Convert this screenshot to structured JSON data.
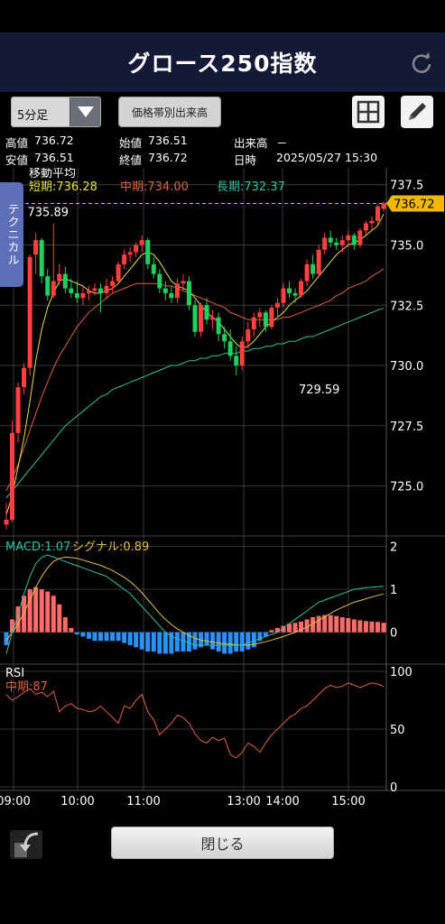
{
  "header": {
    "title": "グロース250指数"
  },
  "toolbar": {
    "interval_value": "5分足",
    "price_volume_label": "価格帯別出来高"
  },
  "quote": {
    "high_label": "高値",
    "high": "736.72",
    "open_label": "始値",
    "open": "736.51",
    "volume_label": "出来高",
    "volume": "－",
    "low_label": "安値",
    "low": "736.51",
    "close_label": "終値",
    "close": "736.72",
    "time_label": "日時",
    "time": "2025/05/27 15:30"
  },
  "side_tab": {
    "label": "テクニカル"
  },
  "footer": {
    "close_label": "閉じる"
  },
  "colors": {
    "up": "#ff4040",
    "down": "#1fd060",
    "sma_short": "#e0e040",
    "sma_mid": "#e06040",
    "sma_long": "#30c0a0",
    "macd_pos": "#ff6b6b",
    "macd_neg": "#2e90ff",
    "price_tag": "#f0b800"
  },
  "chart_data": [
    {
      "type": "candlestick",
      "title": "移動平均",
      "legend": [
        {
          "name": "短期",
          "value": "736.28",
          "color": "#e0e040"
        },
        {
          "name": "中期",
          "value": "734.00",
          "color": "#e06040"
        },
        {
          "name": "長期",
          "value": "732.37",
          "color": "#30c0a0"
        }
      ],
      "y_ticks": [
        "737.5",
        "735.0",
        "732.5",
        "730.0",
        "727.5",
        "725.0"
      ],
      "ylim": [
        723.0,
        738.2
      ],
      "x_ticks": [
        "09:00",
        "10:00",
        "11:00",
        "13:00",
        "14:00",
        "15:00"
      ],
      "last_price": 736.72,
      "last_price_label": "736.72",
      "annotations": [
        {
          "text": "735.89",
          "t": 8,
          "value": 735.89
        },
        {
          "text": "729.59",
          "t": 54,
          "value": 729.59
        }
      ],
      "candles": [
        [
          723.4,
          724.3,
          723.2,
          723.6
        ],
        [
          723.6,
          727.7,
          723.5,
          727.2
        ],
        [
          727.2,
          729.3,
          726.8,
          729.1
        ],
        [
          729.1,
          730.1,
          728.8,
          729.9
        ],
        [
          729.9,
          734.6,
          729.6,
          734.5
        ],
        [
          734.6,
          735.5,
          733.8,
          735.2
        ],
        [
          735.2,
          735.3,
          733.4,
          733.7
        ],
        [
          733.7,
          734.0,
          732.7,
          732.9
        ],
        [
          732.9,
          735.9,
          732.8,
          733.5
        ],
        [
          733.5,
          734.2,
          733.3,
          733.8
        ],
        [
          733.8,
          734.1,
          733.0,
          733.2
        ],
        [
          733.2,
          733.6,
          732.8,
          733.0
        ],
        [
          733.0,
          733.5,
          732.6,
          732.8
        ],
        [
          732.8,
          733.3,
          732.5,
          733.0
        ],
        [
          733.0,
          733.3,
          732.7,
          733.1
        ],
        [
          733.1,
          733.4,
          732.9,
          733.2
        ],
        [
          733.2,
          733.4,
          732.2,
          733.0
        ],
        [
          733.0,
          733.6,
          732.8,
          733.3
        ],
        [
          733.3,
          733.7,
          733.0,
          733.5
        ],
        [
          733.5,
          734.3,
          733.4,
          734.2
        ],
        [
          734.2,
          734.8,
          734.0,
          734.6
        ],
        [
          734.6,
          734.9,
          734.3,
          734.7
        ],
        [
          734.7,
          735.1,
          734.5,
          735.0
        ],
        [
          735.0,
          735.4,
          734.7,
          735.2
        ],
        [
          735.2,
          735.3,
          734.0,
          734.2
        ],
        [
          734.2,
          734.5,
          733.6,
          733.8
        ],
        [
          733.8,
          734.0,
          733.0,
          733.2
        ],
        [
          733.2,
          733.5,
          732.7,
          733.0
        ],
        [
          733.0,
          733.3,
          732.6,
          732.8
        ],
        [
          732.8,
          733.6,
          732.6,
          733.4
        ],
        [
          733.4,
          733.8,
          733.1,
          733.5
        ],
        [
          733.5,
          733.7,
          732.3,
          732.5
        ],
        [
          732.5,
          732.7,
          731.2,
          731.4
        ],
        [
          731.4,
          732.6,
          731.2,
          732.5
        ],
        [
          732.5,
          732.8,
          731.7,
          731.9
        ],
        [
          731.9,
          732.3,
          731.5,
          732.0
        ],
        [
          732.0,
          732.2,
          731.0,
          731.3
        ],
        [
          731.3,
          731.6,
          730.7,
          731.0
        ],
        [
          731.0,
          731.5,
          730.2,
          730.4
        ],
        [
          730.4,
          730.8,
          729.6,
          730.0
        ],
        [
          730.0,
          731.2,
          729.8,
          731.0
        ],
        [
          731.0,
          731.8,
          730.7,
          731.5
        ],
        [
          731.5,
          732.2,
          731.2,
          732.0
        ],
        [
          732.0,
          732.4,
          731.6,
          732.2
        ],
        [
          732.2,
          732.3,
          731.4,
          731.6
        ],
        [
          731.6,
          732.5,
          731.5,
          732.4
        ],
        [
          732.4,
          732.8,
          732.0,
          732.6
        ],
        [
          732.6,
          733.4,
          732.4,
          733.2
        ],
        [
          733.2,
          733.5,
          732.8,
          733.0
        ],
        [
          733.0,
          733.2,
          732.6,
          732.9
        ],
        [
          732.9,
          733.6,
          732.8,
          733.5
        ],
        [
          733.5,
          734.4,
          733.3,
          734.2
        ],
        [
          734.2,
          734.6,
          733.6,
          733.8
        ],
        [
          733.8,
          735.0,
          733.7,
          734.8
        ],
        [
          734.8,
          735.5,
          734.6,
          735.3
        ],
        [
          735.3,
          735.6,
          734.9,
          735.1
        ],
        [
          735.1,
          735.3,
          734.8,
          735.0
        ],
        [
          735.0,
          735.4,
          734.7,
          735.2
        ],
        [
          735.2,
          735.6,
          734.9,
          735.4
        ],
        [
          735.4,
          735.5,
          734.8,
          735.0
        ],
        [
          735.0,
          735.7,
          734.9,
          735.6
        ],
        [
          735.6,
          736.0,
          735.4,
          735.9
        ],
        [
          735.9,
          736.2,
          735.6,
          736.0
        ],
        [
          736.0,
          736.7,
          735.8,
          736.6
        ],
        [
          736.5,
          736.8,
          736.4,
          736.72
        ]
      ],
      "sma_short": [
        723.8,
        724.6,
        725.8,
        727.0,
        728.5,
        730.2,
        731.5,
        732.4,
        733.0,
        733.5,
        733.6,
        733.5,
        733.4,
        733.3,
        733.1,
        733.0,
        733.0,
        733.1,
        733.2,
        733.4,
        733.7,
        734.0,
        734.3,
        734.6,
        734.7,
        734.6,
        734.3,
        733.9,
        733.5,
        733.3,
        733.2,
        733.1,
        732.8,
        732.5,
        732.2,
        732.0,
        731.8,
        731.5,
        731.2,
        730.9,
        730.7,
        730.8,
        731.0,
        731.3,
        731.6,
        731.8,
        732.0,
        732.2,
        732.5,
        732.7,
        732.9,
        733.1,
        733.4,
        733.7,
        734.0,
        734.3,
        734.6,
        734.8,
        735.0,
        735.1,
        735.2,
        735.4,
        735.6,
        735.8,
        736.28
      ],
      "sma_mid": [
        724.8,
        725.3,
        725.9,
        726.6,
        727.3,
        728.0,
        728.7,
        729.3,
        729.9,
        730.4,
        730.8,
        731.2,
        731.6,
        731.9,
        732.2,
        732.4,
        732.6,
        732.8,
        733.0,
        733.1,
        733.2,
        733.3,
        733.4,
        733.4,
        733.4,
        733.4,
        733.4,
        733.3,
        733.3,
        733.2,
        733.1,
        733.0,
        732.9,
        732.8,
        732.7,
        732.6,
        732.5,
        732.4,
        732.2,
        732.1,
        732.0,
        731.9,
        731.9,
        731.9,
        731.9,
        731.9,
        731.9,
        732.0,
        732.0,
        732.1,
        732.2,
        732.3,
        732.4,
        732.5,
        732.6,
        732.7,
        732.9,
        733.0,
        733.2,
        733.3,
        733.4,
        733.5,
        733.7,
        733.85,
        734.0
      ],
      "sma_long": [
        724.5,
        724.8,
        725.1,
        725.4,
        725.7,
        726.0,
        726.3,
        726.6,
        726.9,
        727.2,
        727.5,
        727.7,
        727.9,
        728.1,
        728.3,
        728.5,
        728.7,
        728.8,
        729.0,
        729.1,
        729.2,
        729.3,
        729.4,
        729.5,
        729.6,
        729.7,
        729.8,
        729.9,
        730.0,
        730.0,
        730.1,
        730.2,
        730.2,
        730.3,
        730.3,
        730.4,
        730.4,
        730.5,
        730.5,
        730.5,
        730.6,
        730.6,
        730.7,
        730.7,
        730.8,
        730.8,
        730.9,
        730.9,
        731.0,
        731.0,
        731.1,
        731.2,
        731.2,
        731.3,
        731.4,
        731.5,
        731.6,
        731.7,
        731.8,
        731.9,
        732.0,
        732.1,
        732.2,
        732.3,
        732.37
      ]
    },
    {
      "type": "bar",
      "title": "MACD",
      "legend": [
        {
          "name": "MACD",
          "value": "1.07",
          "color": "#30c0a0"
        },
        {
          "name": "シグナル",
          "value": "0.89",
          "color": "#e0c040"
        }
      ],
      "y_ticks": [
        "2",
        "1",
        "0"
      ],
      "ylim": [
        -0.7,
        2.2
      ],
      "histogram": [
        -0.3,
        0.3,
        0.6,
        0.85,
        1.0,
        1.05,
        1.0,
        0.95,
        0.85,
        0.65,
        0.35,
        0.1,
        -0.05,
        -0.1,
        -0.15,
        -0.2,
        -0.2,
        -0.2,
        -0.2,
        -0.2,
        -0.25,
        -0.3,
        -0.35,
        -0.4,
        -0.45,
        -0.45,
        -0.5,
        -0.5,
        -0.5,
        -0.45,
        -0.45,
        -0.45,
        -0.4,
        -0.35,
        -0.3,
        -0.4,
        -0.45,
        -0.5,
        -0.5,
        -0.45,
        -0.45,
        -0.4,
        -0.35,
        -0.2,
        -0.1,
        0.05,
        0.1,
        0.15,
        0.2,
        0.22,
        0.25,
        0.3,
        0.35,
        0.38,
        0.4,
        0.4,
        0.38,
        0.35,
        0.33,
        0.3,
        0.28,
        0.26,
        0.25,
        0.24,
        0.22
      ],
      "macd": [
        -0.5,
        0.0,
        0.4,
        0.9,
        1.3,
        1.6,
        1.75,
        1.8,
        1.75,
        1.7,
        1.65,
        1.6,
        1.55,
        1.5,
        1.45,
        1.4,
        1.35,
        1.3,
        1.2,
        1.1,
        1.0,
        0.9,
        0.75,
        0.6,
        0.45,
        0.3,
        0.15,
        0.0,
        -0.1,
        -0.15,
        -0.2,
        -0.25,
        -0.3,
        -0.3,
        -0.3,
        -0.3,
        -0.3,
        -0.3,
        -0.3,
        -0.3,
        -0.3,
        -0.25,
        -0.2,
        -0.15,
        -0.1,
        -0.05,
        0.0,
        0.1,
        0.2,
        0.3,
        0.4,
        0.5,
        0.6,
        0.7,
        0.75,
        0.8,
        0.85,
        0.9,
        0.95,
        1.0,
        1.02,
        1.04,
        1.05,
        1.06,
        1.07
      ],
      "signal": [
        -0.2,
        0.0,
        0.2,
        0.45,
        0.75,
        1.05,
        1.3,
        1.5,
        1.65,
        1.72,
        1.75,
        1.74,
        1.72,
        1.68,
        1.64,
        1.6,
        1.56,
        1.5,
        1.44,
        1.36,
        1.28,
        1.18,
        1.06,
        0.92,
        0.76,
        0.6,
        0.44,
        0.3,
        0.18,
        0.08,
        0.0,
        -0.08,
        -0.14,
        -0.18,
        -0.21,
        -0.23,
        -0.25,
        -0.27,
        -0.28,
        -0.29,
        -0.3,
        -0.3,
        -0.28,
        -0.25,
        -0.22,
        -0.18,
        -0.14,
        -0.1,
        -0.05,
        0.0,
        0.06,
        0.12,
        0.2,
        0.28,
        0.36,
        0.44,
        0.52,
        0.58,
        0.64,
        0.7,
        0.74,
        0.78,
        0.82,
        0.86,
        0.89
      ]
    },
    {
      "type": "line",
      "title": "RSI",
      "legend": [
        {
          "name": "中期",
          "value": "87",
          "color": "#e06040"
        }
      ],
      "y_ticks": [
        "100",
        "50",
        "0"
      ],
      "ylim": [
        0,
        100
      ],
      "values": [
        80,
        75,
        78,
        82,
        85,
        80,
        82,
        78,
        83,
        65,
        70,
        72,
        68,
        67,
        65,
        66,
        70,
        65,
        60,
        55,
        70,
        68,
        75,
        80,
        65,
        58,
        45,
        50,
        55,
        62,
        60,
        55,
        46,
        40,
        38,
        43,
        40,
        42,
        28,
        25,
        30,
        38,
        35,
        30,
        38,
        45,
        50,
        55,
        60,
        63,
        68,
        70,
        75,
        80,
        85,
        88,
        86,
        87,
        90,
        88,
        86,
        88,
        90,
        89,
        87
      ]
    }
  ]
}
